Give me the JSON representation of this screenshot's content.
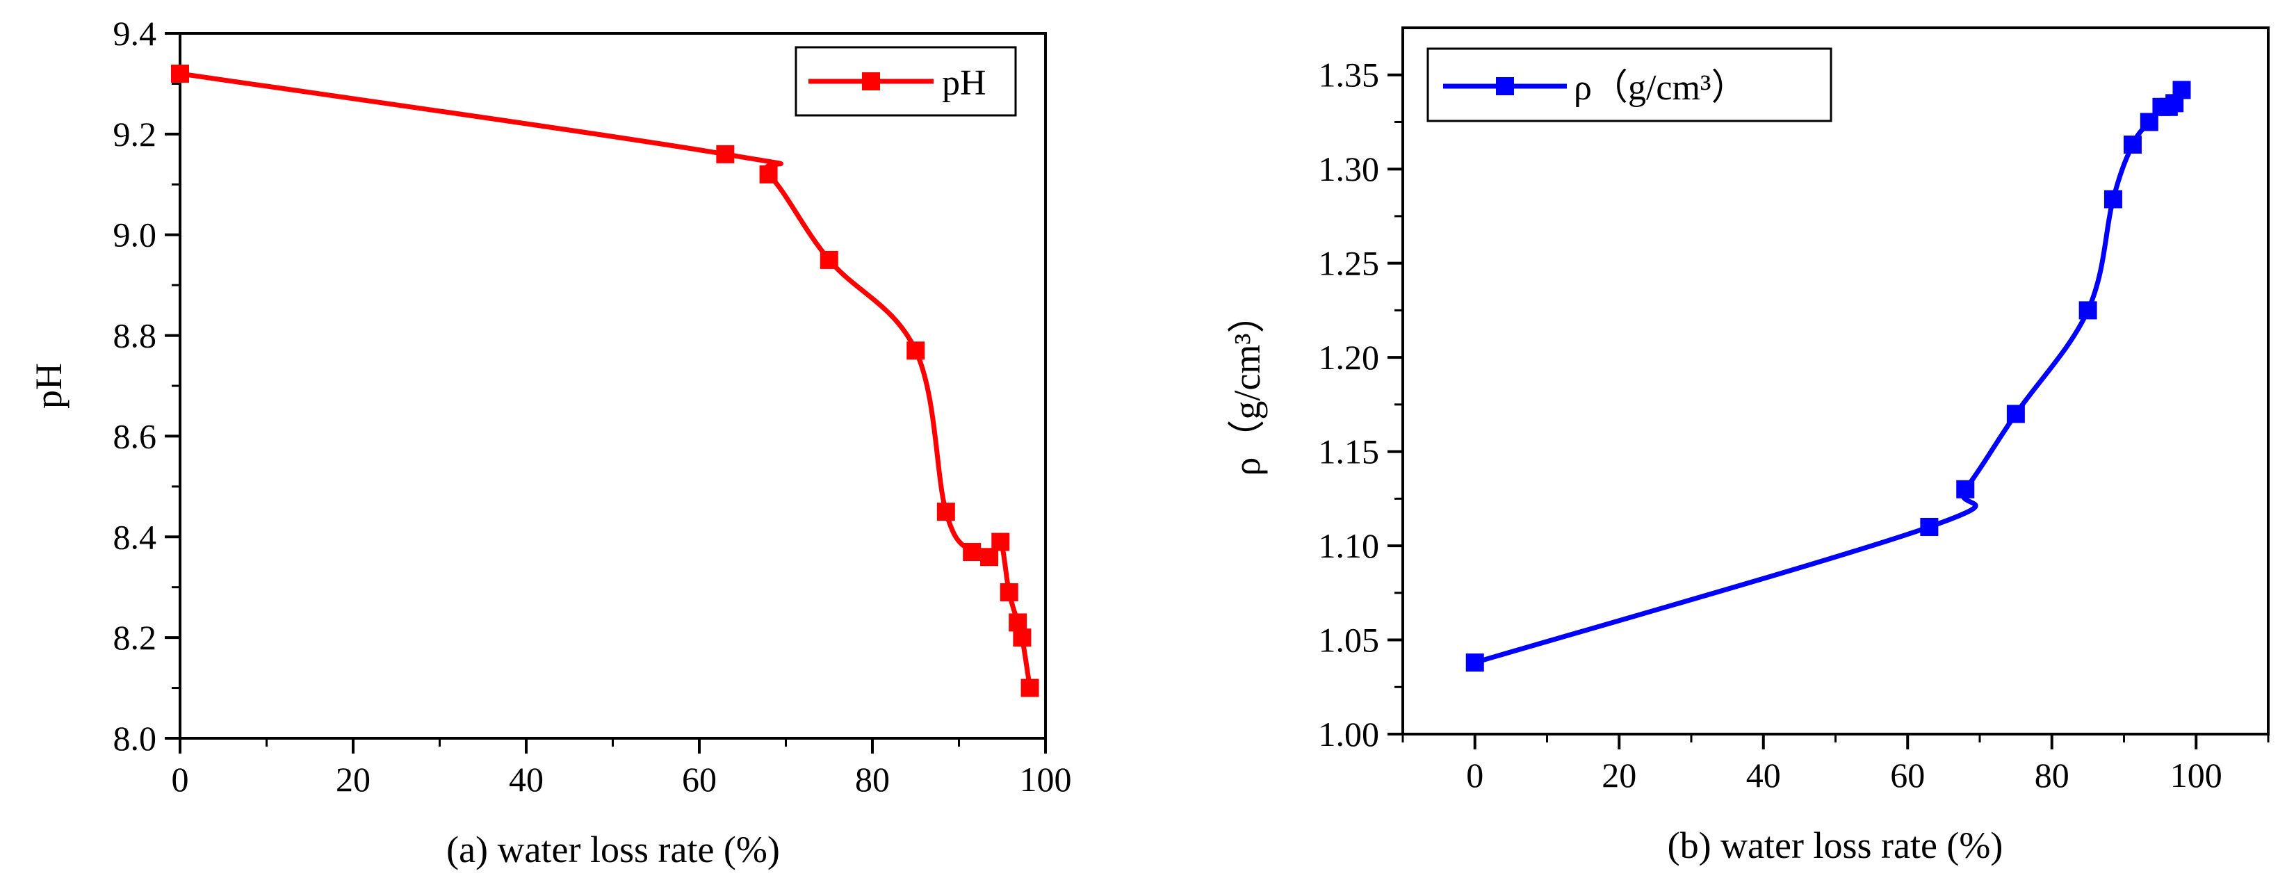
{
  "chart_data": [
    {
      "type": "line",
      "panel": "a",
      "xlabel": "(a) water loss rate (%)",
      "ylabel": "pH",
      "xlim": [
        0,
        100
      ],
      "ylim": [
        8.0,
        9.4
      ],
      "x_ticks": [
        0,
        20,
        40,
        60,
        80,
        100
      ],
      "y_ticks": [
        8.0,
        8.2,
        8.4,
        8.6,
        8.8,
        9.0,
        9.2,
        9.4
      ],
      "x_tick_labels": [
        "0",
        "20",
        "40",
        "60",
        "80",
        "100"
      ],
      "y_tick_labels": [
        "8.0",
        "8.2",
        "8.4",
        "8.6",
        "8.8",
        "9.0",
        "9.2",
        "9.4"
      ],
      "grid": false,
      "legend_position": "top-right",
      "color": "#ff0000",
      "series": [
        {
          "name": "pH",
          "x": [
            0,
            63,
            68,
            75,
            85,
            88.5,
            91.5,
            93.5,
            94.8,
            95.8,
            96.8,
            97.3,
            98.2
          ],
          "y": [
            9.32,
            9.16,
            9.12,
            8.95,
            8.77,
            8.45,
            8.37,
            8.36,
            8.39,
            8.29,
            8.23,
            8.2,
            8.1
          ]
        }
      ]
    },
    {
      "type": "line",
      "panel": "b",
      "xlabel": "(b) water loss rate (%)",
      "ylabel": "ρ（g/cm³）",
      "xlim": [
        -10,
        110
      ],
      "ylim": [
        1.0,
        1.375
      ],
      "x_ticks": [
        0,
        20,
        40,
        60,
        80,
        100
      ],
      "y_ticks": [
        1.0,
        1.05,
        1.1,
        1.15,
        1.2,
        1.25,
        1.3,
        1.35
      ],
      "x_tick_labels": [
        "0",
        "20",
        "40",
        "60",
        "80",
        "100"
      ],
      "y_tick_labels": [
        "1.00",
        "1.05",
        "1.10",
        "1.15",
        "1.20",
        "1.25",
        "1.30",
        "1.35"
      ],
      "grid": false,
      "legend_position": "top-left",
      "color": "#0000ff",
      "series": [
        {
          "name": "ρ（g/cm³）",
          "x": [
            0,
            63,
            68,
            75,
            85,
            88.5,
            91.2,
            93.5,
            95.2,
            96.2,
            97,
            98
          ],
          "y": [
            1.038,
            1.11,
            1.13,
            1.17,
            1.225,
            1.284,
            1.313,
            1.325,
            1.333,
            1.333,
            1.335,
            1.342
          ]
        }
      ]
    }
  ]
}
